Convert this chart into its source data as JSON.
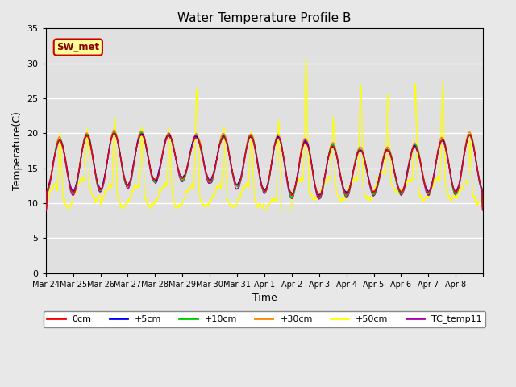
{
  "title": "Water Temperature Profile B",
  "xlabel": "Time",
  "ylabel": "Temperature(C)",
  "ylim": [
    0,
    35
  ],
  "yticks": [
    0,
    5,
    10,
    15,
    20,
    25,
    30,
    35
  ],
  "fig_facecolor": "#e8e8e8",
  "ax_facecolor": "#e0e0e0",
  "series_colors": {
    "0cm": "#ff0000",
    "+5cm": "#0000ff",
    "+10cm": "#00cc00",
    "+30cm": "#ff8800",
    "+50cm": "#ffff00",
    "TC_temp11": "#aa00aa"
  },
  "sw_met_label": "SW_met",
  "x_tick_labels": [
    "Mar 24",
    "Mar 25",
    "Mar 26",
    "Mar 27",
    "Mar 28",
    "Mar 29",
    "Mar 30",
    "Mar 31",
    "Apr 1",
    "Apr 2",
    "Apr 3",
    "Apr 4",
    "Apr 5",
    "Apr 6",
    "Apr 7",
    "Apr 8"
  ],
  "n_days": 16,
  "pts_per_day": 144,
  "seed": 7
}
